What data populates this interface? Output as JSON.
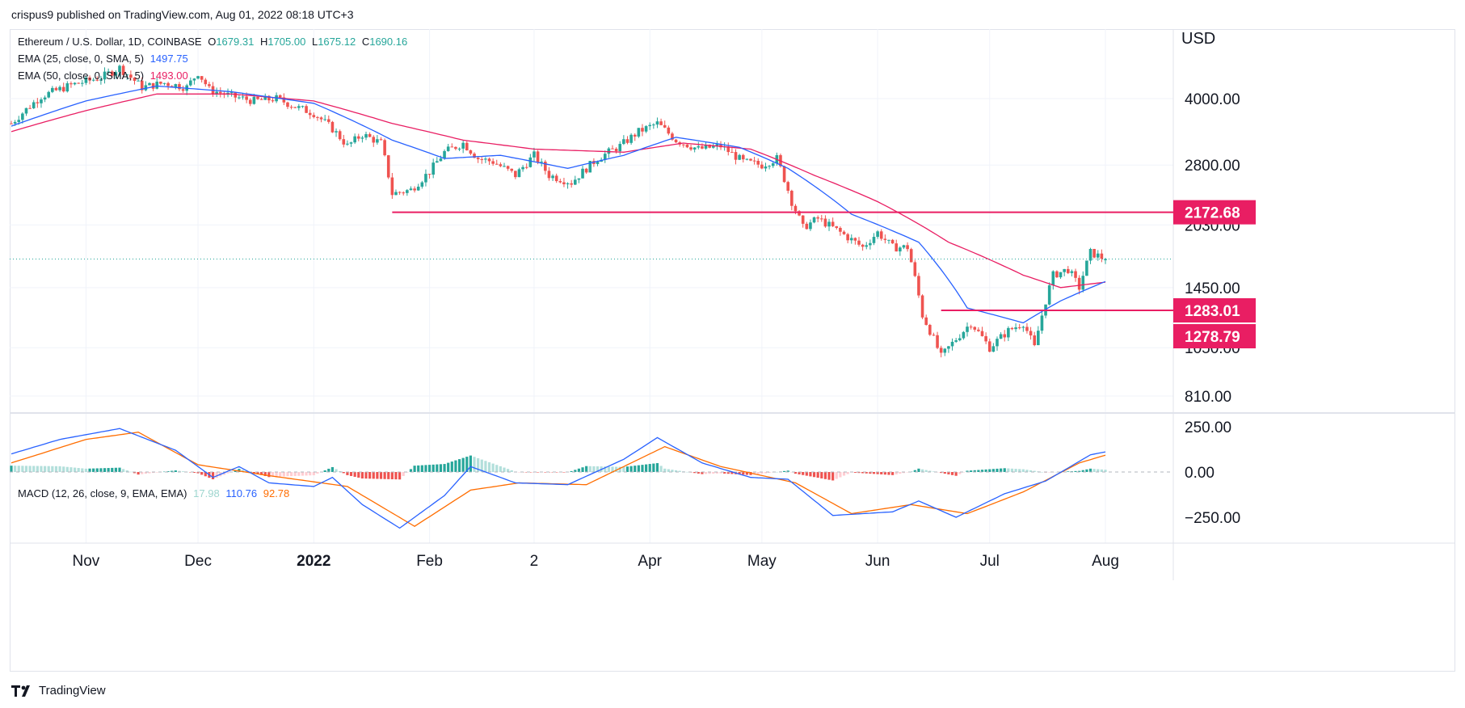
{
  "header": {
    "text": "crispus9 published on TradingView.com, Aug 01, 2022 08:18 UTC+3"
  },
  "footer": {
    "brand": "TradingView"
  },
  "colors": {
    "up": "#26a69a",
    "down": "#ef5350",
    "ema25": "#2962ff",
    "ema50": "#e91e63",
    "macd": "#2962ff",
    "signal": "#ff6d00",
    "hline": "#e91e63",
    "grid": "#f0f3fa"
  },
  "legend": {
    "symbol": "Ethereum / U.S. Dollar, 1D, COINBASE",
    "o_label": "O",
    "o_value": "1679.31",
    "h_label": "H",
    "h_value": "1705.00",
    "l_label": "L",
    "l_value": "1675.12",
    "c_label": "C",
    "c_value": "1690.16",
    "ema25_label": "EMA (25, close, 0, SMA, 5)",
    "ema25_value": "1497.75",
    "ema50_label": "EMA (50, close, 0, SMA, 5)",
    "ema50_value": "1493.00",
    "macd_label": "MACD (12, 26, close, 9, EMA, EMA)",
    "macd_hist": "17.98",
    "macd_line": "110.76",
    "macd_signal": "92.78"
  },
  "chart_data": {
    "type": "candlestick",
    "currency": "USD",
    "price_ticks": [
      "4000.00",
      "2800.00",
      "2030.00",
      "1450.00",
      "1050.00",
      "810.00"
    ],
    "macd_ticks": [
      "250.00",
      "0.00",
      "−250.00"
    ],
    "x_labels": [
      {
        "label": "Nov",
        "bold": false
      },
      {
        "label": "Dec",
        "bold": false
      },
      {
        "label": "2022",
        "bold": true
      },
      {
        "label": "Feb",
        "bold": false
      },
      {
        "label": "2",
        "bold": false
      },
      {
        "label": "Apr",
        "bold": false
      },
      {
        "label": "May",
        "bold": false
      },
      {
        "label": "Jun",
        "bold": false
      },
      {
        "label": "Jul",
        "bold": false
      },
      {
        "label": "Aug",
        "bold": false
      }
    ],
    "horizontal_levels": [
      {
        "value": 2172.68,
        "label": "2172.68",
        "from": "Jan 22",
        "to": "Aug"
      },
      {
        "value": 1283.01,
        "label": "1283.01",
        "from": "Jun 18",
        "to": "Aug"
      }
    ],
    "price_badges": [
      "2172.68",
      "1283.01",
      "1278.79"
    ],
    "last_close": 1690.16,
    "close_path": [
      [
        "Oct 12",
        3500
      ],
      [
        "Oct 20",
        4050
      ],
      [
        "Oct 28",
        4300
      ],
      [
        "Nov 5",
        4480
      ],
      [
        "Nov 10",
        4720
      ],
      [
        "Nov 16",
        4250
      ],
      [
        "Nov 22",
        4350
      ],
      [
        "Nov 28",
        4250
      ],
      [
        "Dec 1",
        4600
      ],
      [
        "Dec 4",
        4200
      ],
      [
        "Dec 10",
        4050
      ],
      [
        "Dec 16",
        3950
      ],
      [
        "Dec 22",
        4000
      ],
      [
        "Dec 28",
        3800
      ],
      [
        "Jan 1",
        3700
      ],
      [
        "Jan 6",
        3400
      ],
      [
        "Jan 10",
        3100
      ],
      [
        "Jan 14",
        3300
      ],
      [
        "Jan 19",
        3150
      ],
      [
        "Jan 22",
        2400
      ],
      [
        "Jan 27",
        2450
      ],
      [
        "Feb 1",
        2700
      ],
      [
        "Feb 5",
        3000
      ],
      [
        "Feb 10",
        3150
      ],
      [
        "Feb 14",
        2900
      ],
      [
        "Feb 18",
        2850
      ],
      [
        "Feb 24",
        2650
      ],
      [
        "Mar 1",
        2950
      ],
      [
        "Mar 5",
        2650
      ],
      [
        "Mar 11",
        2550
      ],
      [
        "Mar 18",
        2900
      ],
      [
        "Mar 24",
        3100
      ],
      [
        "Mar 29",
        3350
      ],
      [
        "Apr 3",
        3500
      ],
      [
        "Apr 8",
        3200
      ],
      [
        "Apr 14",
        3050
      ],
      [
        "Apr 20",
        3100
      ],
      [
        "Apr 26",
        2850
      ],
      [
        "May 1",
        2800
      ],
      [
        "May 5",
        2900
      ],
      [
        "May 9",
        2300
      ],
      [
        "May 12",
        2000
      ],
      [
        "May 16",
        2100
      ],
      [
        "May 22",
        1950
      ],
      [
        "May 28",
        1800
      ],
      [
        "Jun 1",
        1950
      ],
      [
        "Jun 5",
        1800
      ],
      [
        "Jun 9",
        1800
      ],
      [
        "Jun 13",
        1250
      ],
      [
        "Jun 16",
        1100
      ],
      [
        "Jun 18",
        1000
      ],
      [
        "Jun 22",
        1100
      ],
      [
        "Jun 26",
        1200
      ],
      [
        "Jul 1",
        1050
      ],
      [
        "Jul 6",
        1150
      ],
      [
        "Jul 10",
        1200
      ],
      [
        "Jul 13",
        1050
      ],
      [
        "Jul 16",
        1350
      ],
      [
        "Jul 18",
        1550
      ],
      [
        "Jul 22",
        1600
      ],
      [
        "Jul 25",
        1450
      ],
      [
        "Jul 28",
        1750
      ],
      [
        "Aug 1",
        1690
      ]
    ],
    "ema25_path": [
      [
        "Oct 12",
        3450
      ],
      [
        "Nov 1",
        3950
      ],
      [
        "Nov 20",
        4280
      ],
      [
        "Dec 10",
        4150
      ],
      [
        "Jan 1",
        3900
      ],
      [
        "Jan 22",
        3200
      ],
      [
        "Feb 5",
        2900
      ],
      [
        "Feb 20",
        2950
      ],
      [
        "Mar 10",
        2750
      ],
      [
        "Mar 25",
        2950
      ],
      [
        "Apr 8",
        3250
      ],
      [
        "Apr 25",
        3080
      ],
      [
        "May 8",
        2750
      ],
      [
        "May 25",
        2150
      ],
      [
        "Jun 12",
        1850
      ],
      [
        "Jun 25",
        1300
      ],
      [
        "Jul 10",
        1200
      ],
      [
        "Jul 20",
        1350
      ],
      [
        "Aug 1",
        1498
      ]
    ],
    "ema50_path": [
      [
        "Oct 12",
        3350
      ],
      [
        "Nov 1",
        3750
      ],
      [
        "Nov 20",
        4100
      ],
      [
        "Dec 10",
        4100
      ],
      [
        "Jan 1",
        3950
      ],
      [
        "Jan 22",
        3500
      ],
      [
        "Feb 10",
        3200
      ],
      [
        "Mar 1",
        3050
      ],
      [
        "Mar 25",
        3000
      ],
      [
        "Apr 10",
        3150
      ],
      [
        "Apr 28",
        3050
      ],
      [
        "May 15",
        2650
      ],
      [
        "Jun 1",
        2300
      ],
      [
        "Jun 20",
        1850
      ],
      [
        "Jul 10",
        1550
      ],
      [
        "Jul 20",
        1450
      ],
      [
        "Aug 1",
        1493
      ]
    ],
    "macd_path": [
      [
        "Oct 12",
        100
      ],
      [
        "Oct 25",
        180
      ],
      [
        "Nov 10",
        240
      ],
      [
        "Nov 25",
        120
      ],
      [
        "Dec 5",
        -30
      ],
      [
        "Dec 12",
        30
      ],
      [
        "Dec 20",
        -60
      ],
      [
        "Jan 1",
        -80
      ],
      [
        "Jan 6",
        -30
      ],
      [
        "Jan 14",
        -180
      ],
      [
        "Jan 24",
        -310
      ],
      [
        "Feb 5",
        -130
      ],
      [
        "Feb 12",
        30
      ],
      [
        "Feb 24",
        -60
      ],
      [
        "Mar 10",
        -70
      ],
      [
        "Mar 25",
        70
      ],
      [
        "Apr 3",
        190
      ],
      [
        "Apr 15",
        50
      ],
      [
        "Apr 28",
        -30
      ],
      [
        "May 8",
        -40
      ],
      [
        "May 20",
        -240
      ],
      [
        "Jun 5",
        -220
      ],
      [
        "Jun 12",
        -160
      ],
      [
        "Jun 22",
        -250
      ],
      [
        "Jul 5",
        -120
      ],
      [
        "Jul 16",
        -50
      ],
      [
        "Jul 28",
        95
      ],
      [
        "Aug 1",
        111
      ]
    ],
    "signal_path": [
      [
        "Oct 12",
        50
      ],
      [
        "Nov 1",
        180
      ],
      [
        "Nov 15",
        220
      ],
      [
        "Dec 1",
        40
      ],
      [
        "Dec 20",
        -20
      ],
      [
        "Jan 10",
        -80
      ],
      [
        "Jan 28",
        -300
      ],
      [
        "Feb 12",
        -100
      ],
      [
        "Feb 25",
        -60
      ],
      [
        "Mar 15",
        -70
      ],
      [
        "Apr 5",
        140
      ],
      [
        "Apr 20",
        30
      ],
      [
        "May 10",
        -60
      ],
      [
        "May 25",
        -230
      ],
      [
        "Jun 10",
        -180
      ],
      [
        "Jun 25",
        -230
      ],
      [
        "Jul 10",
        -110
      ],
      [
        "Jul 25",
        50
      ],
      [
        "Aug 1",
        93
      ]
    ]
  }
}
